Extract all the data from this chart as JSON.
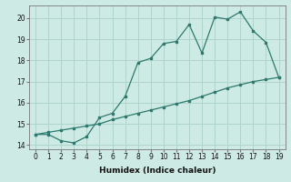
{
  "xlabel": "Humidex (Indice chaleur)",
  "ylabel": "",
  "background_color": "#ceeae4",
  "line_color": "#2d7a6e",
  "grid_color": "#aed4cc",
  "x_data": [
    0,
    1,
    2,
    3,
    4,
    5,
    6,
    7,
    8,
    9,
    10,
    11,
    12,
    13,
    14,
    15,
    16,
    17,
    18,
    19
  ],
  "y_curve": [
    14.5,
    14.5,
    14.2,
    14.1,
    14.4,
    15.3,
    15.5,
    16.3,
    17.9,
    18.1,
    18.8,
    18.9,
    19.7,
    18.35,
    20.05,
    19.95,
    20.3,
    19.4,
    18.85,
    17.2
  ],
  "y_line": [
    14.5,
    14.6,
    14.7,
    14.8,
    14.9,
    15.0,
    15.2,
    15.35,
    15.5,
    15.65,
    15.8,
    15.95,
    16.1,
    16.3,
    16.5,
    16.7,
    16.85,
    17.0,
    17.1,
    17.2
  ],
  "xlim": [
    -0.5,
    19.5
  ],
  "ylim": [
    13.8,
    20.6
  ],
  "yticks": [
    14,
    15,
    16,
    17,
    18,
    19,
    20
  ],
  "xticks": [
    0,
    1,
    2,
    3,
    4,
    5,
    6,
    7,
    8,
    9,
    10,
    11,
    12,
    13,
    14,
    15,
    16,
    17,
    18,
    19
  ],
  "xlabel_fontsize": 6.5,
  "tick_fontsize": 5.5
}
